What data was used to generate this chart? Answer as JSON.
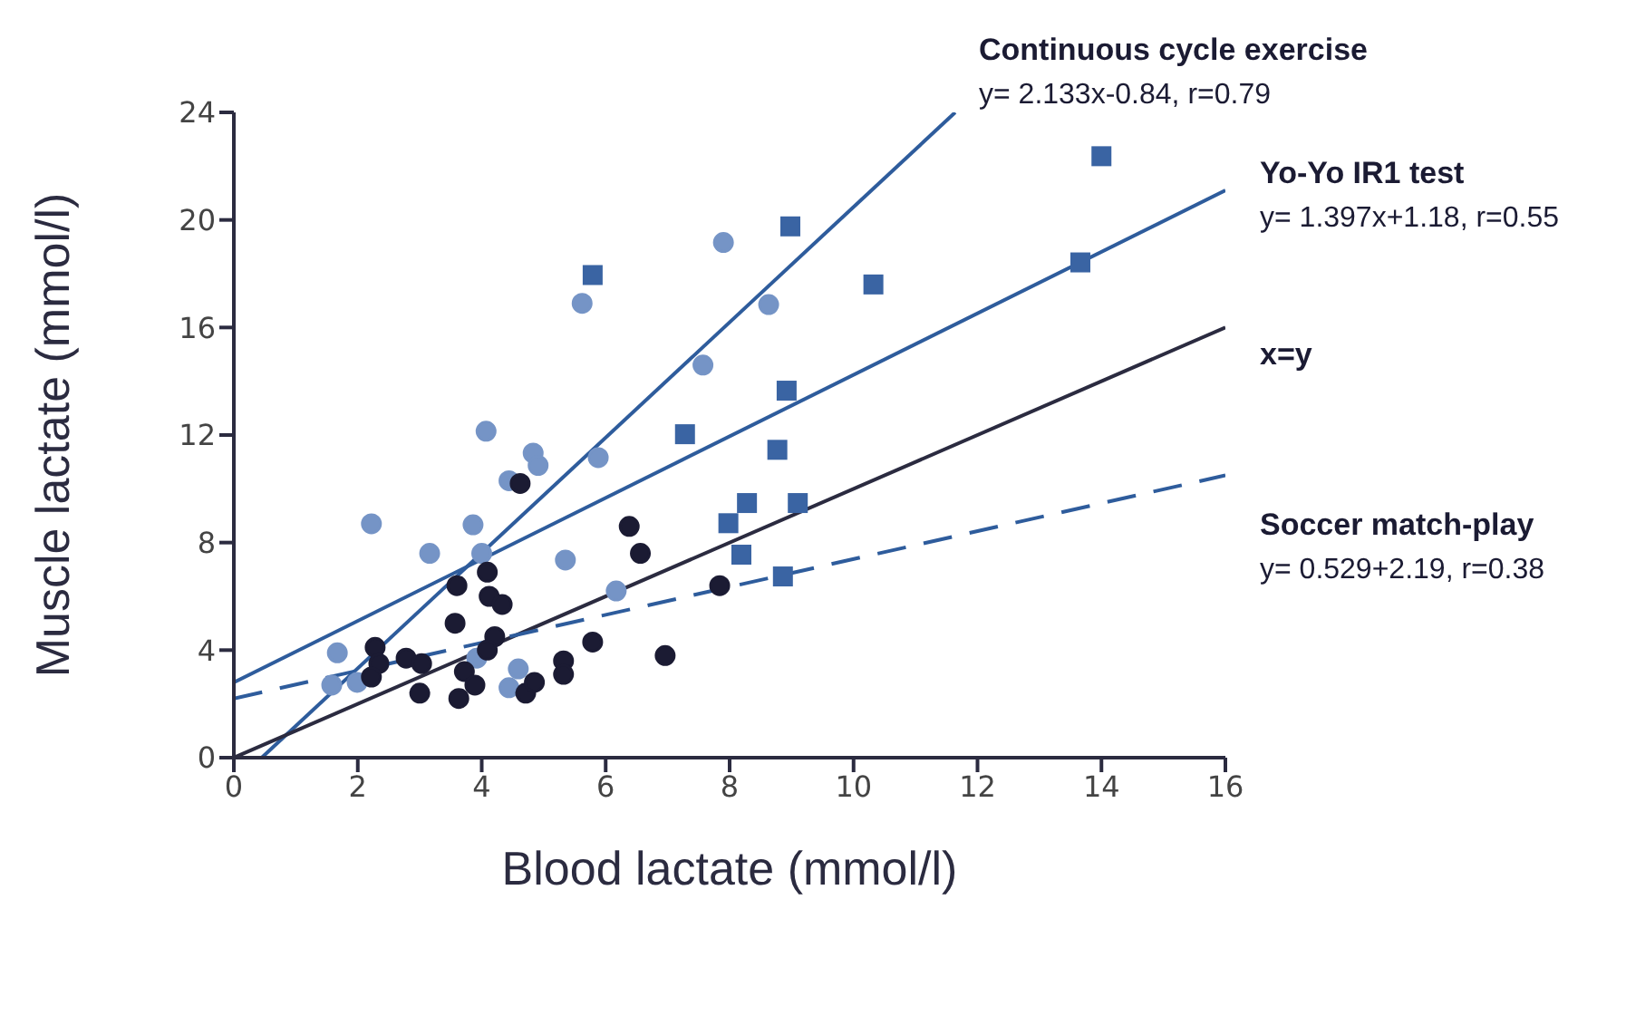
{
  "chart_data": {
    "type": "scatter",
    "xlabel": "Blood lactate (mmol/l)",
    "ylabel": "Muscle lactate (mmol/l)",
    "xlim": [
      0,
      16
    ],
    "xticks": [
      0,
      2,
      4,
      6,
      8,
      10,
      12,
      14,
      16
    ],
    "ylim": [
      0,
      24
    ],
    "yticks": [
      0,
      4,
      8,
      12,
      16,
      20,
      24
    ],
    "series": [
      {
        "marker": "square",
        "color": "#3a64a3",
        "x": [
          5.79,
          8.98,
          10.32,
          13.66,
          14.0,
          7.28,
          8.92,
          8.77,
          8.28,
          9.1,
          7.98,
          8.19,
          8.86
        ],
        "values": [
          17.95,
          19.76,
          17.6,
          18.42,
          22.37,
          12.03,
          13.65,
          11.45,
          9.47,
          9.47,
          8.72,
          7.55,
          6.74
        ]
      },
      {
        "marker": "circle",
        "color": "#7594c6",
        "x": [
          5.62,
          4.07,
          4.83,
          4.91,
          5.88,
          4.44,
          7.9,
          8.63,
          7.57,
          2.22,
          3.86,
          3.16,
          4.0,
          4.18,
          5.35,
          6.17,
          1.67,
          1.58,
          1.99,
          4.59,
          4.44,
          3.92
        ],
        "values": [
          16.9,
          12.14,
          11.33,
          10.87,
          11.16,
          10.3,
          19.16,
          16.85,
          14.6,
          8.7,
          8.66,
          7.6,
          7.6,
          null,
          7.35,
          6.2,
          3.9,
          2.7,
          2.8,
          3.3,
          2.6,
          3.7
        ]
      },
      {
        "marker": "circle",
        "color": "#1b1b33",
        "x": [
          4.62,
          6.38,
          6.56,
          3.6,
          4.09,
          4.12,
          4.33,
          3.57,
          4.21,
          4.09,
          2.28,
          2.34,
          2.22,
          2.78,
          3.03,
          3.0,
          3.72,
          3.63,
          3.89,
          4.71,
          4.85,
          5.32,
          5.32,
          5.79,
          6.96,
          7.84
        ],
        "values": [
          10.2,
          8.6,
          7.6,
          6.4,
          6.9,
          6.0,
          5.7,
          5.0,
          4.5,
          4.0,
          4.1,
          3.5,
          3.0,
          3.7,
          3.5,
          2.4,
          3.2,
          2.2,
          2.7,
          2.4,
          2.8,
          3.6,
          3.1,
          4.3,
          3.8,
          6.4
        ]
      },
      {
        "type": "line",
        "name": "Continuous cycle exercise",
        "color": "#2e5c9c",
        "line_style": "solid",
        "x": [
          0.45,
          11.64
        ],
        "values": [
          0,
          24
        ]
      },
      {
        "type": "line",
        "name": "Yo-Yo IR1 test",
        "color": "#2e5c9c",
        "line_style": "solid",
        "x": [
          0,
          16
        ],
        "values": [
          2.8,
          21.1
        ]
      },
      {
        "type": "line",
        "name": "x=y",
        "color": "#2b2b40",
        "line_style": "solid",
        "x": [
          0,
          16
        ],
        "values": [
          0,
          16
        ]
      },
      {
        "type": "line",
        "name": "Soccer match-play",
        "color": "#2e5c9c",
        "line_style": "dashed",
        "x": [
          0,
          16
        ],
        "values": [
          2.2,
          10.5
        ]
      }
    ],
    "annotations": [
      "y= 2.133x-0.84, r=0.79",
      "y= 1.397x+1.18, r=0.55",
      "y= 0.529+2.19, r=0.38"
    ]
  }
}
